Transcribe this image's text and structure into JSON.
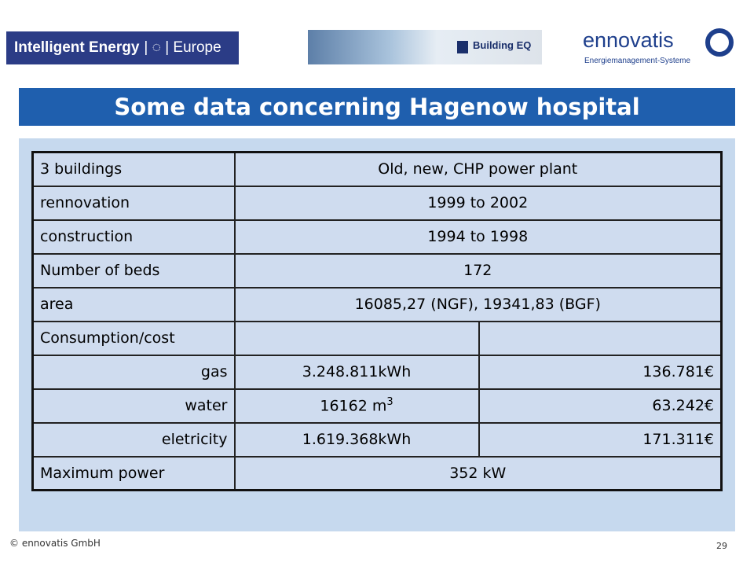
{
  "header": {
    "logo_left": {
      "name": "Intelligent Energy",
      "suffix": "Europe"
    },
    "logo_center": "Building EQ",
    "logo_right": {
      "name": "ennovatis",
      "tagline": "Energiemanagement-Systeme"
    }
  },
  "title": "Some data concerning Hagenow hospital",
  "table": {
    "rows": [
      [
        "3 buildings",
        "Old, new, CHP power plant"
      ],
      [
        "rennovation",
        "1999 to 2002"
      ],
      [
        "construction",
        "1994 to 1998"
      ],
      [
        "Number of beds",
        "172"
      ],
      [
        "area",
        "16085,27 (NGF), 19341,83 (BGF)"
      ],
      [
        "Consumption/cost"
      ],
      [
        "gas",
        "3.248.811kWh",
        "136.781€"
      ],
      [
        "water",
        {
          "text": "16162 m",
          "sup": "3"
        },
        "63.242€"
      ],
      [
        "eletricity",
        "1.619.368kWh",
        "171.311€"
      ],
      [
        "Maximum power",
        "352 kW"
      ]
    ]
  },
  "footer": {
    "copyright": "© ennovatis GmbH",
    "page": "29"
  }
}
